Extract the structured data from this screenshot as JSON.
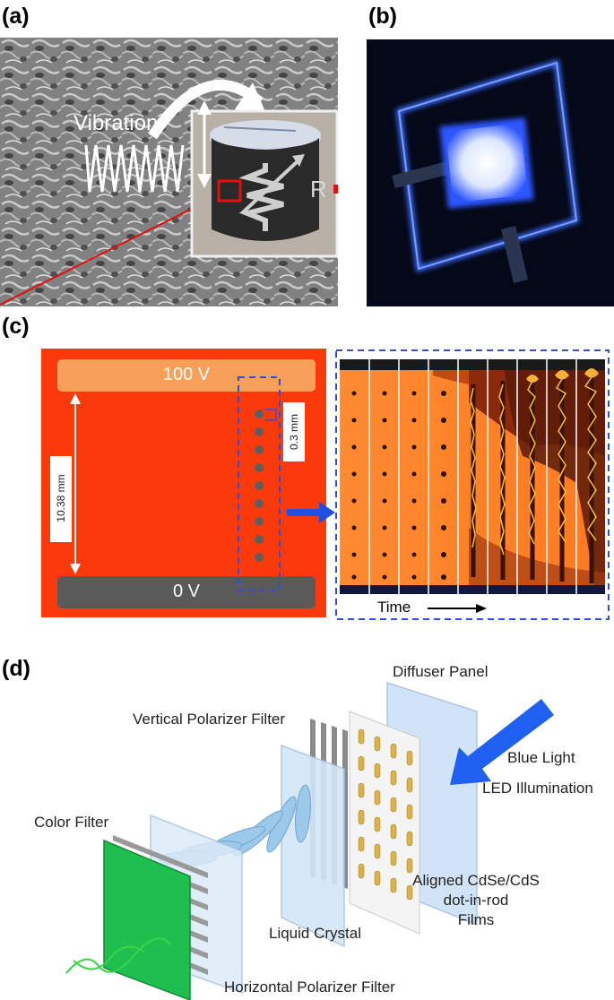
{
  "panels": {
    "a": {
      "label": "(a)",
      "vibration_text": "Vibration",
      "resistor_text": "R"
    },
    "b": {
      "label": "(b)"
    },
    "c": {
      "label": "(c)",
      "top_electrode": "100 V",
      "bottom_electrode": "0 V",
      "gap_dimension": "10.38 mm",
      "spacing_dimension": "0.3 mm",
      "time_label": "Time"
    },
    "d": {
      "label": "(d)",
      "layers": {
        "diffuser_panel": "Diffuser Panel",
        "vertical_polarizer": "Vertical Polarizer Filter",
        "blue_light": "Blue Light",
        "led_illumination": "LED Illumination",
        "color_filter": "Color Filter",
        "aligned_films_line1": "Aligned CdSe/CdS",
        "aligned_films_line2": "dot-in-rod",
        "aligned_films_line3": "Films",
        "liquid_crystal": "Liquid Crystal",
        "horizontal_polarizer": "Horizontal Polarizer Filter"
      }
    }
  },
  "colors": {
    "panel_c_background": "#fa3a0a",
    "top_electrode": "#f8a05a",
    "bottom_electrode": "#5a5a5a",
    "dashed_box": "#2f4fd8",
    "blue_arrow": "#2050e0",
    "panel_b_glow": "#3a6cff",
    "color_filter": "#1fbf4f",
    "rods": "#d9b24a"
  }
}
